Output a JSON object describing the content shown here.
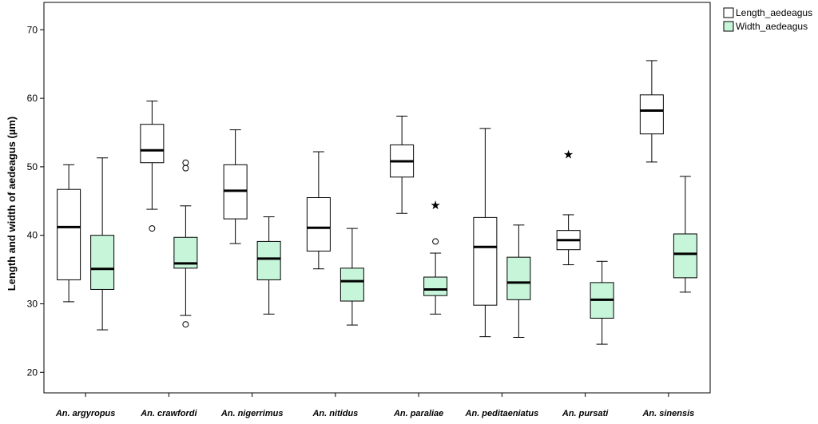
{
  "chart_data": {
    "type": "boxplot",
    "ylabel": "Length and width of aedeagus (µm)",
    "xlabel": "",
    "ylim": [
      17,
      74
    ],
    "yticks": [
      20,
      30,
      40,
      50,
      60,
      70
    ],
    "grid": false,
    "legend_position": "top-right",
    "categories": [
      "An. argyropus",
      "An. crawfordi",
      "An. nigerrimus",
      "An. nitidus",
      "An. paraliae",
      "An. peditaeniatus",
      "An. pursati",
      "An. sinensis"
    ],
    "series": [
      {
        "name": "Length_aedeagus",
        "color": "#ffffff",
        "boxes": [
          {
            "whisker_low": 30.3,
            "q1": 33.5,
            "median": 41.2,
            "q3": 46.7,
            "whisker_high": 50.3,
            "outliers": [],
            "extremes": []
          },
          {
            "whisker_low": 43.8,
            "q1": 50.6,
            "median": 52.4,
            "q3": 56.2,
            "whisker_high": 59.6,
            "outliers": [
              41.0
            ],
            "extremes": []
          },
          {
            "whisker_low": 38.8,
            "q1": 42.4,
            "median": 46.5,
            "q3": 50.3,
            "whisker_high": 55.4,
            "outliers": [],
            "extremes": []
          },
          {
            "whisker_low": 35.1,
            "q1": 37.7,
            "median": 41.1,
            "q3": 45.5,
            "whisker_high": 52.2,
            "outliers": [],
            "extremes": []
          },
          {
            "whisker_low": 43.2,
            "q1": 48.5,
            "median": 50.8,
            "q3": 53.2,
            "whisker_high": 57.4,
            "outliers": [],
            "extremes": []
          },
          {
            "whisker_low": 25.2,
            "q1": 29.8,
            "median": 38.3,
            "q3": 42.6,
            "whisker_high": 55.6,
            "outliers": [],
            "extremes": []
          },
          {
            "whisker_low": 35.7,
            "q1": 37.9,
            "median": 39.3,
            "q3": 40.7,
            "whisker_high": 43.0,
            "outliers": [],
            "extremes": [
              52.0
            ]
          },
          {
            "whisker_low": 50.7,
            "q1": 54.8,
            "median": 58.2,
            "q3": 60.5,
            "whisker_high": 65.5,
            "outliers": [],
            "extremes": []
          }
        ]
      },
      {
        "name": "Width_aedeagus",
        "color": "#c6f5d9",
        "boxes": [
          {
            "whisker_low": 26.2,
            "q1": 32.1,
            "median": 35.1,
            "q3": 40.0,
            "whisker_high": 51.3,
            "outliers": [],
            "extremes": []
          },
          {
            "whisker_low": 28.3,
            "q1": 35.2,
            "median": 35.9,
            "q3": 39.7,
            "whisker_high": 44.3,
            "outliers": [
              27.0,
              49.8,
              50.6
            ],
            "extremes": []
          },
          {
            "whisker_low": 28.5,
            "q1": 33.5,
            "median": 36.6,
            "q3": 39.1,
            "whisker_high": 42.7,
            "outliers": [],
            "extremes": []
          },
          {
            "whisker_low": 26.9,
            "q1": 30.4,
            "median": 33.3,
            "q3": 35.2,
            "whisker_high": 41.0,
            "outliers": [],
            "extremes": []
          },
          {
            "whisker_low": 28.5,
            "q1": 31.2,
            "median": 32.1,
            "q3": 33.9,
            "whisker_high": 37.4,
            "outliers": [
              39.1
            ],
            "extremes": [
              44.6
            ]
          },
          {
            "whisker_low": 25.1,
            "q1": 30.6,
            "median": 33.1,
            "q3": 36.8,
            "whisker_high": 41.5,
            "outliers": [],
            "extremes": []
          },
          {
            "whisker_low": 24.1,
            "q1": 27.9,
            "median": 30.6,
            "q3": 33.1,
            "whisker_high": 36.2,
            "outliers": [],
            "extremes": []
          },
          {
            "whisker_low": 31.7,
            "q1": 33.8,
            "median": 37.3,
            "q3": 40.2,
            "whisker_high": 48.6,
            "outliers": [],
            "extremes": []
          }
        ]
      }
    ]
  }
}
